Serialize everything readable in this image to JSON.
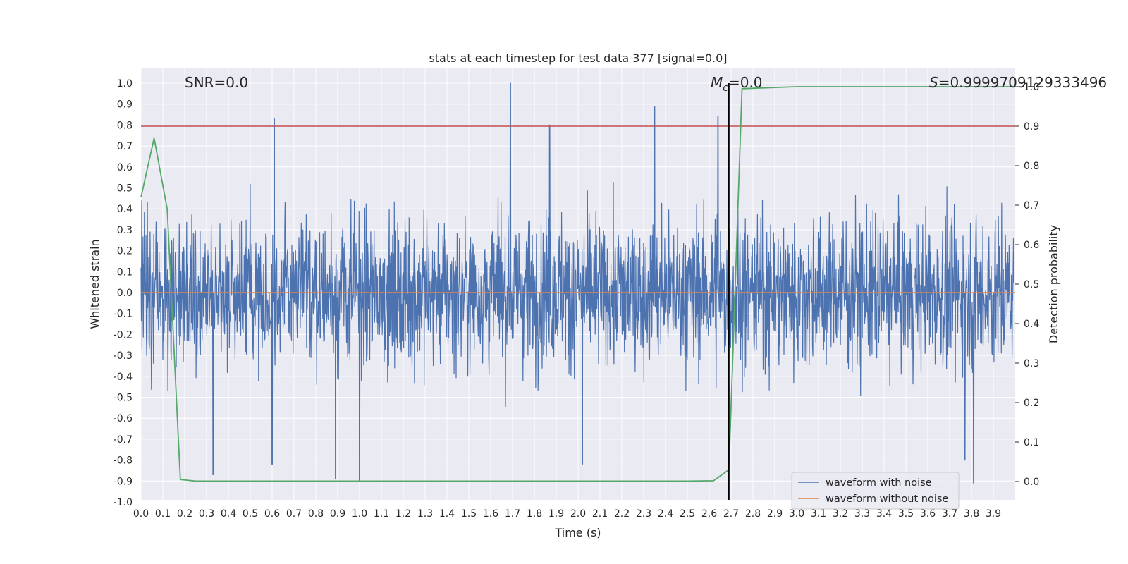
{
  "chart_data": {
    "type": "line",
    "title": "stats at each timestep for test data 377 [signal=0.0]",
    "xlabel": "Time (s)",
    "ylabel": "Whitened strain",
    "ylabel_right": "Detection probability",
    "xlim": [
      0.0,
      4.0
    ],
    "ylim": [
      -1.0,
      1.0
    ],
    "ylim_right": [
      0.0,
      1.0
    ],
    "x_ticks": [
      "0.0",
      "0.1",
      "0.2",
      "0.3",
      "0.4",
      "0.5",
      "0.6",
      "0.7",
      "0.8",
      "0.9",
      "1.0",
      "1.1",
      "1.2",
      "1.3",
      "1.4",
      "1.5",
      "1.6",
      "1.7",
      "1.8",
      "1.9",
      "2.0",
      "2.1",
      "2.2",
      "2.3",
      "2.4",
      "2.5",
      "2.6",
      "2.7",
      "2.8",
      "2.9",
      "3.0",
      "3.1",
      "3.2",
      "3.3",
      "3.4",
      "3.5",
      "3.6",
      "3.7",
      "3.8",
      "3.9"
    ],
    "y_ticks": [
      "1.0",
      "0.9",
      "0.8",
      "0.7",
      "0.6",
      "0.5",
      "0.4",
      "0.3",
      "0.2",
      "0.1",
      "0.0",
      "-0.1",
      "-0.2",
      "-0.3",
      "-0.4",
      "-0.5",
      "-0.6",
      "-0.7",
      "-0.8",
      "-0.9",
      "-1.0"
    ],
    "y_ticks_right": [
      "1.0",
      "0.9",
      "0.8",
      "0.7",
      "0.6",
      "0.5",
      "0.4",
      "0.3",
      "0.2",
      "0.1",
      "0.0"
    ],
    "grid": true,
    "legend_position": "lower-right",
    "annotations": {
      "snr": "SNR=0.0",
      "mc_symbol": "M",
      "mc_subscript": "c",
      "mc_value": "=0.0",
      "s_symbol": "S",
      "s_value": "=0.9999709129333496"
    },
    "threshold_line": {
      "axis": "right",
      "value": 0.9,
      "color": "#c44e52"
    },
    "marker_line": {
      "x": 2.69,
      "color": "#000000"
    },
    "series": [
      {
        "name": "waveform with noise",
        "color": "#4c72b0",
        "noise_envelope": {
          "typical_amplitude": 0.45,
          "min": -0.9,
          "max": 1.0
        },
        "spikes": [
          {
            "x": 0.61,
            "y": 0.83
          },
          {
            "x": 1.69,
            "y": 1.0
          },
          {
            "x": 1.87,
            "y": 0.8
          },
          {
            "x": 2.35,
            "y": 0.89
          },
          {
            "x": 2.64,
            "y": 0.84
          },
          {
            "x": 0.33,
            "y": -0.87
          },
          {
            "x": 0.89,
            "y": -0.89
          },
          {
            "x": 1.0,
            "y": -0.9
          },
          {
            "x": 3.81,
            "y": -0.91
          },
          {
            "x": 2.02,
            "y": -0.82
          },
          {
            "x": 3.77,
            "y": -0.8
          },
          {
            "x": 0.6,
            "y": -0.82
          }
        ]
      },
      {
        "name": "waveform without noise",
        "color": "#dd8452",
        "x": [
          0.0,
          4.0
        ],
        "y": [
          0.0,
          0.0
        ]
      },
      {
        "color": "#55a868",
        "axis": "right",
        "x": [
          0.0,
          0.06,
          0.12,
          0.18,
          0.25,
          0.31,
          0.5,
          1.0,
          1.5,
          2.0,
          2.5,
          2.62,
          2.69,
          2.75,
          3.0,
          3.5,
          4.0
        ],
        "y": [
          0.72,
          0.87,
          0.69,
          0.005,
          0.001,
          0.001,
          0.001,
          0.001,
          0.001,
          0.001,
          0.001,
          0.002,
          0.03,
          0.995,
          1.0,
          1.0,
          1.0
        ]
      }
    ]
  }
}
